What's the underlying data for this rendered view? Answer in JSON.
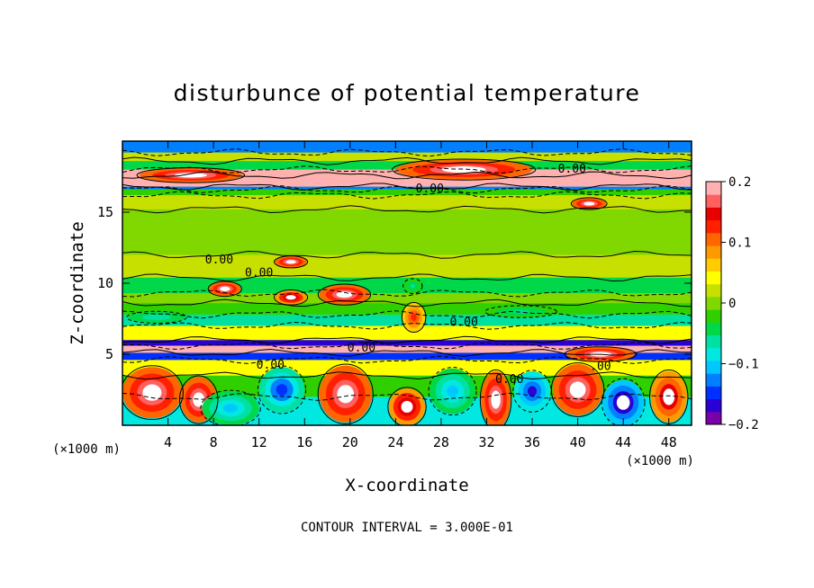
{
  "chart_data": {
    "type": "heatmap",
    "title": "disturbunce of potential temperature",
    "xlabel": "X-coordinate",
    "ylabel": "Z-coordinate",
    "x_unit": "(×1000 m)",
    "y_unit": "(×1000 m)",
    "xlim": [
      0,
      50
    ],
    "ylim": [
      0,
      20
    ],
    "x_ticks": [
      4,
      8,
      12,
      16,
      20,
      24,
      28,
      32,
      36,
      40,
      44,
      48
    ],
    "y_ticks": [
      5,
      10,
      15
    ],
    "colorbar": {
      "range": [
        -0.2,
        0.2
      ],
      "tick_values": [
        0.2,
        0.1,
        0,
        -0.1,
        -0.2
      ],
      "tick_labels": [
        "0.2",
        "0.1",
        "0",
        "−0.1",
        "−0.2"
      ],
      "colors": [
        "#7a00a8",
        "#2a00d4",
        "#0030ff",
        "#0080ff",
        "#00c8ff",
        "#00e8e0",
        "#00e0a0",
        "#00d84a",
        "#30d000",
        "#80d800",
        "#c8e000",
        "#ffff00",
        "#ffcc00",
        "#ff9900",
        "#ff6600",
        "#ff2000",
        "#e80000",
        "#ff6060",
        "#ffb0b0"
      ]
    },
    "contour_labels": [
      {
        "text": "0.00",
        "x": 39.5,
        "z": 18.1
      },
      {
        "text": "0.00",
        "x": 27,
        "z": 16.7
      },
      {
        "text": "0.00",
        "x": 8.5,
        "z": 11.7
      },
      {
        "text": "0.00",
        "x": 12,
        "z": 10.8
      },
      {
        "text": "0.00",
        "x": 30,
        "z": 7.3
      },
      {
        "text": "0.00",
        "x": 21,
        "z": 5.5
      },
      {
        "text": "0.00",
        "x": 13,
        "z": 4.3
      },
      {
        "text": "0.00",
        "x": 34,
        "z": 3.3
      },
      {
        "text": ".00",
        "x": 42,
        "z": 4.2
      }
    ],
    "bands": [
      {
        "z": 0.0,
        "value": -0.08
      },
      {
        "z": 2.0,
        "value": -0.02
      },
      {
        "z": 3.5,
        "value": 0.05
      },
      {
        "z": 4.6,
        "value": -0.15
      },
      {
        "z": 5.1,
        "value": 0.2
      },
      {
        "z": 5.6,
        "value": -0.17
      },
      {
        "z": 6.0,
        "value": 0.04
      },
      {
        "z": 7.0,
        "value": -0.07
      },
      {
        "z": 7.8,
        "value": -0.03
      },
      {
        "z": 8.6,
        "value": 0.01
      },
      {
        "z": 9.3,
        "value": -0.04
      },
      {
        "z": 10.4,
        "value": 0.03
      },
      {
        "z": 12.0,
        "value": 0.01
      },
      {
        "z": 15.2,
        "value": 0.02
      },
      {
        "z": 16.2,
        "value": -0.03
      },
      {
        "z": 16.6,
        "value": -0.12
      },
      {
        "z": 16.8,
        "value": 0.2
      },
      {
        "z": 17.6,
        "value": 0.18
      },
      {
        "z": 18.0,
        "value": -0.05
      },
      {
        "z": 18.6,
        "value": 0.02
      },
      {
        "z": 19.2,
        "value": -0.13
      }
    ],
    "blobs": [
      {
        "x": 2.6,
        "z": 2.3,
        "rx": 2.6,
        "rz": 1.8,
        "value": 0.2
      },
      {
        "x": 6.7,
        "z": 1.8,
        "rx": 1.6,
        "rz": 1.6,
        "value": 0.2
      },
      {
        "x": 9.5,
        "z": 1.2,
        "rx": 2.5,
        "rz": 1.2,
        "value": -0.1
      },
      {
        "x": 14.0,
        "z": 2.5,
        "rx": 2.0,
        "rz": 1.6,
        "value": -0.14
      },
      {
        "x": 19.6,
        "z": 2.2,
        "rx": 2.3,
        "rz": 2.0,
        "value": 0.2
      },
      {
        "x": 25.0,
        "z": 1.3,
        "rx": 1.6,
        "rz": 1.3,
        "value": 0.18
      },
      {
        "x": 29.0,
        "z": 2.4,
        "rx": 2.0,
        "rz": 1.6,
        "value": -0.1
      },
      {
        "x": 32.8,
        "z": 1.8,
        "rx": 1.3,
        "rz": 2.0,
        "value": 0.2
      },
      {
        "x": 36.0,
        "z": 2.4,
        "rx": 1.6,
        "rz": 1.4,
        "value": -0.16
      },
      {
        "x": 40.0,
        "z": 2.5,
        "rx": 2.2,
        "rz": 1.8,
        "value": 0.19
      },
      {
        "x": 44.0,
        "z": 1.6,
        "rx": 1.8,
        "rz": 1.6,
        "value": -0.2
      },
      {
        "x": 48.0,
        "z": 2.0,
        "rx": 1.6,
        "rz": 1.8,
        "value": 0.17
      },
      {
        "x": 9.0,
        "z": 9.6,
        "rx": 1.4,
        "rz": 0.5,
        "value": 0.2
      },
      {
        "x": 14.8,
        "z": 9.0,
        "rx": 1.4,
        "rz": 0.5,
        "value": 0.18
      },
      {
        "x": 19.5,
        "z": 9.2,
        "rx": 2.2,
        "rz": 0.7,
        "value": 0.2
      },
      {
        "x": 14.8,
        "z": 11.5,
        "rx": 1.4,
        "rz": 0.4,
        "value": 0.2
      },
      {
        "x": 25.6,
        "z": 7.6,
        "rx": 1.0,
        "rz": 1.0,
        "value": 0.12
      },
      {
        "x": 25.5,
        "z": 9.8,
        "rx": 0.8,
        "rz": 0.5,
        "value": -0.06
      },
      {
        "x": 3.0,
        "z": 7.6,
        "rx": 2.5,
        "rz": 0.4,
        "value": -0.07
      },
      {
        "x": 35.0,
        "z": 8.0,
        "rx": 3.0,
        "rz": 0.4,
        "value": -0.06
      },
      {
        "x": 42.0,
        "z": 5.0,
        "rx": 3.0,
        "rz": 0.5,
        "value": 0.19
      },
      {
        "x": 41.0,
        "z": 15.6,
        "rx": 1.5,
        "rz": 0.4,
        "value": 0.2
      },
      {
        "x": 30.0,
        "z": 18.0,
        "rx": 6.0,
        "rz": 0.7,
        "value": 0.2
      },
      {
        "x": 6.0,
        "z": 17.6,
        "rx": 4.5,
        "rz": 0.5,
        "value": 0.2
      }
    ],
    "contour_interval": "CONTOUR INTERVAL = 3.000E-01"
  }
}
